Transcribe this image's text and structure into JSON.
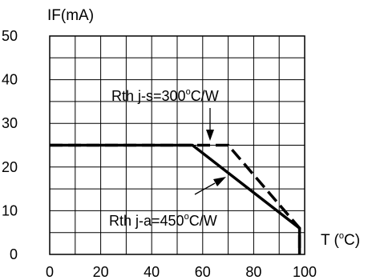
{
  "chart_data": {
    "type": "line",
    "title": "",
    "ylabel": "IF(mA)",
    "xlabel": "T (°C)",
    "xlim": [
      0,
      100
    ],
    "ylim": [
      0,
      50
    ],
    "x_ticks": [
      0,
      20,
      40,
      60,
      80,
      100
    ],
    "y_ticks": [
      0,
      10,
      20,
      30,
      40,
      50
    ],
    "grid": true,
    "series": [
      {
        "name": "Rth j-a=450°C/W",
        "style": "solid",
        "x": [
          0,
          56,
          98,
          98
        ],
        "y": [
          25,
          25,
          6,
          0
        ]
      },
      {
        "name": "Rth j-s=300°C/W",
        "style": "dashed",
        "x": [
          0,
          70,
          98,
          98
        ],
        "y": [
          25,
          25,
          6,
          0
        ]
      }
    ]
  },
  "annotations": {
    "rth_js": {
      "prefix": "Rth j-s=300",
      "degree": "o",
      "suffix": "C/W"
    },
    "rth_ja": {
      "prefix": "Rth j-a=450",
      "degree": "o",
      "suffix": "C/W"
    }
  },
  "axis_text": {
    "y_label": "IF(mA)",
    "x_label_prefix": "T (",
    "x_label_degree": "o",
    "x_label_suffix": "C)"
  },
  "colors": {
    "line": "#000000",
    "grid": "#000000",
    "background": "#ffffff"
  }
}
